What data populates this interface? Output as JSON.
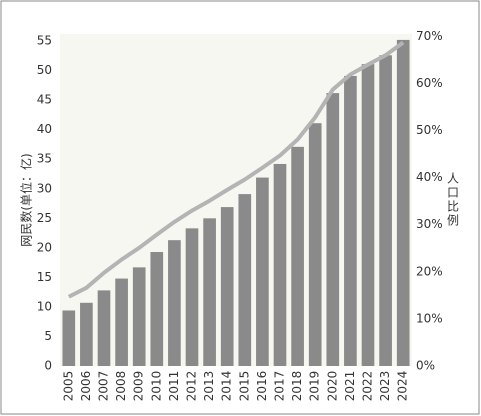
{
  "chart_data": {
    "type": "bar-line",
    "y_label": "网民数(单位：亿)",
    "y2_label": "人口比例",
    "categories": [
      "2005",
      "2006",
      "2007",
      "2008",
      "2009",
      "2010",
      "2011",
      "2012",
      "2013",
      "2014",
      "2015",
      "2016",
      "2017",
      "2018",
      "2019",
      "2020",
      "2021",
      "2022",
      "2023",
      "2024"
    ],
    "series": [
      {
        "type": "bar",
        "color": "#8a8a8a",
        "values": [
          9.4,
          10.7,
          12.8,
          14.8,
          16.7,
          19.3,
          21.3,
          23.3,
          25.0,
          26.9,
          29.1,
          31.9,
          34.2,
          37.1,
          41.1,
          46.2,
          49.1,
          51.1,
          52.6,
          55.2
        ]
      },
      {
        "type": "line",
        "axis": "y2",
        "color": "#b4b4b4",
        "values": [
          14.7,
          16.6,
          19.8,
          22.6,
          25.1,
          27.9,
          30.6,
          33.0,
          35.1,
          37.4,
          39.6,
          42.1,
          44.7,
          48.1,
          52.8,
          58.7,
          61.9,
          64.0,
          66.0,
          68.7
        ]
      }
    ],
    "ylim": [
      0,
      56.2
    ],
    "yticks": [
      0,
      5,
      10,
      15,
      20,
      25,
      30,
      35,
      40,
      45,
      50,
      55
    ],
    "y2lim": [
      0,
      70.5
    ],
    "y2ticks": [
      {
        "value": 0,
        "label": "0%"
      },
      {
        "value": 10,
        "label": "10%"
      },
      {
        "value": 20,
        "label": "20%"
      },
      {
        "value": 30,
        "label": "30%"
      },
      {
        "value": 40,
        "label": "40%"
      },
      {
        "value": 50,
        "label": "50%"
      },
      {
        "value": 60,
        "label": "60%"
      },
      {
        "value": 70,
        "label": "70%"
      }
    ]
  }
}
